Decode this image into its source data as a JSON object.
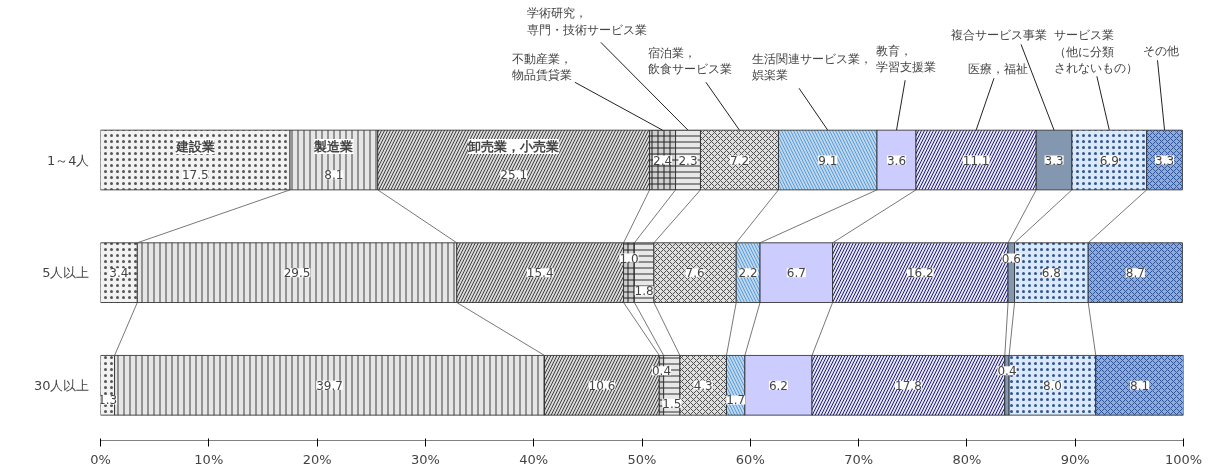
{
  "chart_data": {
    "type": "bar",
    "orientation": "horizontal",
    "stacked": true,
    "categories": [
      "1～4人",
      "5人以上",
      "30人以上"
    ],
    "series": [
      {
        "name": "建設業",
        "color": "#f2f2f2",
        "values": [
          17.5,
          3.4,
          1.3
        ],
        "value_labels": [
          "17.5",
          "3.4",
          "1.3"
        ]
      },
      {
        "name": "製造業",
        "color": "#e6e6e6",
        "values": [
          8.1,
          29.5,
          39.7
        ],
        "value_labels": [
          "8.1",
          "29.5",
          "39.7"
        ]
      },
      {
        "name": "卸売業，小売業",
        "color": "#d9d9d9",
        "values": [
          25.1,
          15.4,
          10.6
        ],
        "value_labels": [
          "25.1",
          "15.4",
          "10.6"
        ]
      },
      {
        "name": "不動産業，物品賃貸業",
        "color": "#d0d0d0",
        "values": [
          2.4,
          1.0,
          0.4
        ],
        "value_labels": [
          "2.4",
          "1.0",
          "0.4"
        ]
      },
      {
        "name": "学術研究，専門・技術サービス業",
        "color": "#e8e8e8",
        "values": [
          2.3,
          1.8,
          1.5
        ],
        "value_labels": [
          "2.3",
          "1.8",
          "1.5"
        ]
      },
      {
        "name": "宿泊業，飲食サービス業",
        "color": "#e0e0e0",
        "values": [
          7.2,
          7.6,
          4.3
        ],
        "value_labels": [
          "7.2",
          "7.6",
          "4.3"
        ]
      },
      {
        "name": "生活関連サービス業，娯楽業",
        "color": "#bdd7ee",
        "values": [
          9.1,
          2.2,
          1.7
        ],
        "value_labels": [
          "9.1",
          "2.2",
          "1.7"
        ]
      },
      {
        "name": "教育，学習支援業",
        "color": "#ccccff",
        "values": [
          3.6,
          6.7,
          6.2
        ],
        "value_labels": [
          "3.6",
          "6.7",
          "6.2"
        ]
      },
      {
        "name": "医療，福祉",
        "color": "#e4e4f4",
        "values": [
          11.1,
          16.2,
          17.8
        ],
        "value_labels": [
          "11.1",
          "16.2",
          "17.8"
        ]
      },
      {
        "name": "複合サービス事業",
        "color": "#8497b0",
        "values": [
          3.3,
          0.6,
          0.4
        ],
        "value_labels": [
          "3.3",
          "0.6",
          "0.4"
        ]
      },
      {
        "name": "サービス業（他に分類されないもの）",
        "color": "#dae8f7",
        "values": [
          6.9,
          6.8,
          8.0
        ],
        "value_labels": [
          "6.9",
          "6.8",
          "8.0"
        ]
      },
      {
        "name": "その他",
        "color": "#8faadc",
        "values": [
          3.3,
          8.7,
          8.1
        ],
        "value_labels": [
          "3.3",
          "8.7",
          "8.1"
        ]
      }
    ],
    "xlim": [
      0,
      100
    ],
    "xticks": [
      {
        "value": 0,
        "label": "0%"
      },
      {
        "value": 10,
        "label": "10%"
      },
      {
        "value": 20,
        "label": "20%"
      },
      {
        "value": 30,
        "label": "30%"
      },
      {
        "value": 40,
        "label": "40%"
      },
      {
        "value": 50,
        "label": "50%"
      },
      {
        "value": 60,
        "label": "60%"
      },
      {
        "value": 70,
        "label": "70%"
      },
      {
        "value": 80,
        "label": "80%"
      },
      {
        "value": 90,
        "label": "90%"
      },
      {
        "value": 100,
        "label": "100%"
      }
    ],
    "grid": false
  }
}
